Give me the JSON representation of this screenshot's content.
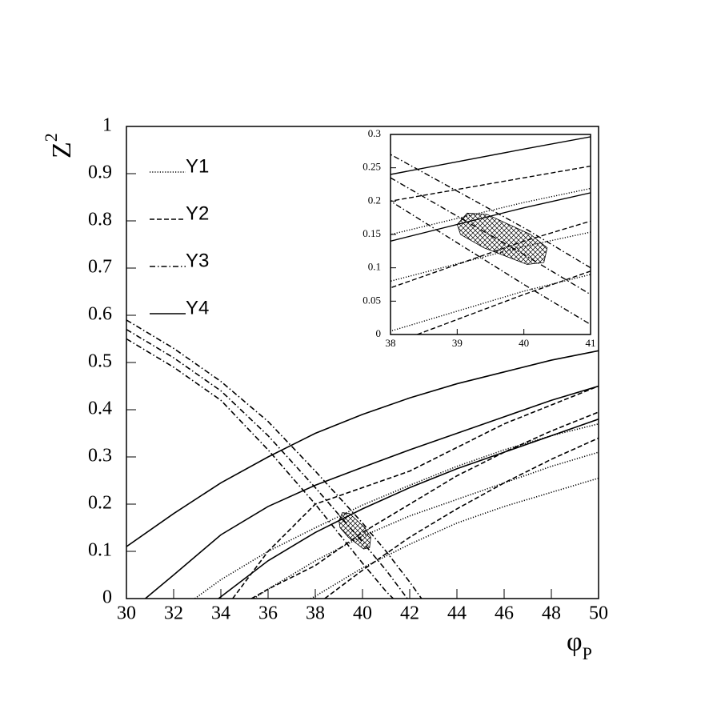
{
  "chart_data": {
    "type": "line",
    "xlabel": "φ",
    "xlabel_sub": "P",
    "ylabel": "Z",
    "ylabel_sup": "2",
    "xlim": [
      30,
      50
    ],
    "ylim": [
      0,
      1
    ],
    "xticks": [
      30,
      32,
      34,
      36,
      38,
      40,
      42,
      44,
      46,
      48,
      50
    ],
    "yticks": [
      0,
      0.1,
      0.2,
      0.3,
      0.4,
      0.5,
      0.6,
      0.7,
      0.8,
      0.9,
      1
    ],
    "legend": "upper left",
    "series": [
      {
        "name": "Y1",
        "style": "dotted",
        "color": "#000000",
        "lines": [
          {
            "x": [
              32.9,
              34,
              36,
              38,
              40,
              42,
              44,
              46,
              48,
              50
            ],
            "values": [
              0,
              0.04,
              0.1,
              0.15,
              0.198,
              0.24,
              0.28,
              0.315,
              0.345,
              0.37
            ]
          },
          {
            "x": [
              35.4,
              36,
              38,
              40,
              42,
              44,
              46,
              48,
              50
            ],
            "values": [
              0,
              0.02,
              0.08,
              0.132,
              0.175,
              0.21,
              0.245,
              0.28,
              0.31
            ]
          },
          {
            "x": [
              37.8,
              38,
              40,
              42,
              44,
              46,
              48,
              50
            ],
            "values": [
              0,
              0.005,
              0.065,
              0.115,
              0.16,
              0.195,
              0.225,
              0.255
            ]
          }
        ]
      },
      {
        "name": "Y2",
        "style": "dashed",
        "color": "#000000",
        "lines": [
          {
            "x": [
              34.5,
              36,
              38,
              40,
              42,
              44,
              46,
              48,
              50
            ],
            "values": [
              0,
              0.1,
              0.2,
              0.235,
              0.27,
              0.32,
              0.37,
              0.41,
              0.45
            ]
          },
          {
            "x": [
              35.3,
              36,
              38,
              40,
              42,
              44,
              46,
              48,
              50
            ],
            "values": [
              0,
              0.02,
              0.07,
              0.14,
              0.2,
              0.26,
              0.31,
              0.355,
              0.395
            ]
          },
          {
            "x": [
              38.4,
              40,
              42,
              44,
              46,
              48,
              50
            ],
            "values": [
              0,
              0.06,
              0.13,
              0.19,
              0.245,
              0.295,
              0.34
            ]
          }
        ]
      },
      {
        "name": "Y3",
        "style": "dashdot",
        "color": "#000000",
        "lines": [
          {
            "x": [
              30,
              32,
              34,
              36,
              38,
              40,
              41,
              42,
              42.5
            ],
            "values": [
              0.59,
              0.53,
              0.46,
              0.375,
              0.27,
              0.16,
              0.1,
              0.035,
              0
            ]
          },
          {
            "x": [
              30,
              32,
              34,
              36,
              38,
              40,
              41,
              41.9
            ],
            "values": [
              0.57,
              0.51,
              0.44,
              0.345,
              0.235,
              0.12,
              0.06,
              0
            ]
          },
          {
            "x": [
              30,
              32,
              34,
              36,
              38,
              40,
              41,
              41.3
            ],
            "values": [
              0.55,
              0.49,
              0.42,
              0.315,
              0.2,
              0.075,
              0.015,
              0
            ]
          }
        ]
      },
      {
        "name": "Y4",
        "style": "solid",
        "color": "#000000",
        "lines": [
          {
            "x": [
              30,
              32,
              34,
              36,
              38,
              40,
              42,
              44,
              46,
              48,
              50
            ],
            "values": [
              0.11,
              0.18,
              0.245,
              0.3,
              0.35,
              0.39,
              0.425,
              0.455,
              0.48,
              0.505,
              0.525
            ]
          },
          {
            "x": [
              30.8,
              32,
              34,
              36,
              38,
              40,
              42,
              44,
              46,
              48,
              50
            ],
            "values": [
              0,
              0.05,
              0.135,
              0.195,
              0.24,
              0.278,
              0.315,
              0.35,
              0.385,
              0.42,
              0.45
            ]
          },
          {
            "x": [
              33.9,
              36,
              38,
              40,
              42,
              44,
              46,
              48,
              50
            ],
            "values": [
              0,
              0.08,
              0.14,
              0.19,
              0.235,
              0.275,
              0.31,
              0.345,
              0.38
            ]
          }
        ]
      }
    ],
    "region": {
      "x": [
        39.0,
        39.15,
        39.45,
        40.1,
        40.35,
        40.3,
        40.05,
        39.4,
        39.05
      ],
      "y": [
        0.165,
        0.182,
        0.18,
        0.15,
        0.13,
        0.108,
        0.105,
        0.13,
        0.15
      ]
    },
    "inset": {
      "xlim": [
        38,
        41
      ],
      "ylim": [
        0,
        0.3
      ],
      "xticks": [
        38,
        39,
        40,
        41
      ],
      "yticks": [
        0,
        0.05,
        0.1,
        0.15,
        0.2,
        0.25,
        0.3
      ]
    }
  }
}
